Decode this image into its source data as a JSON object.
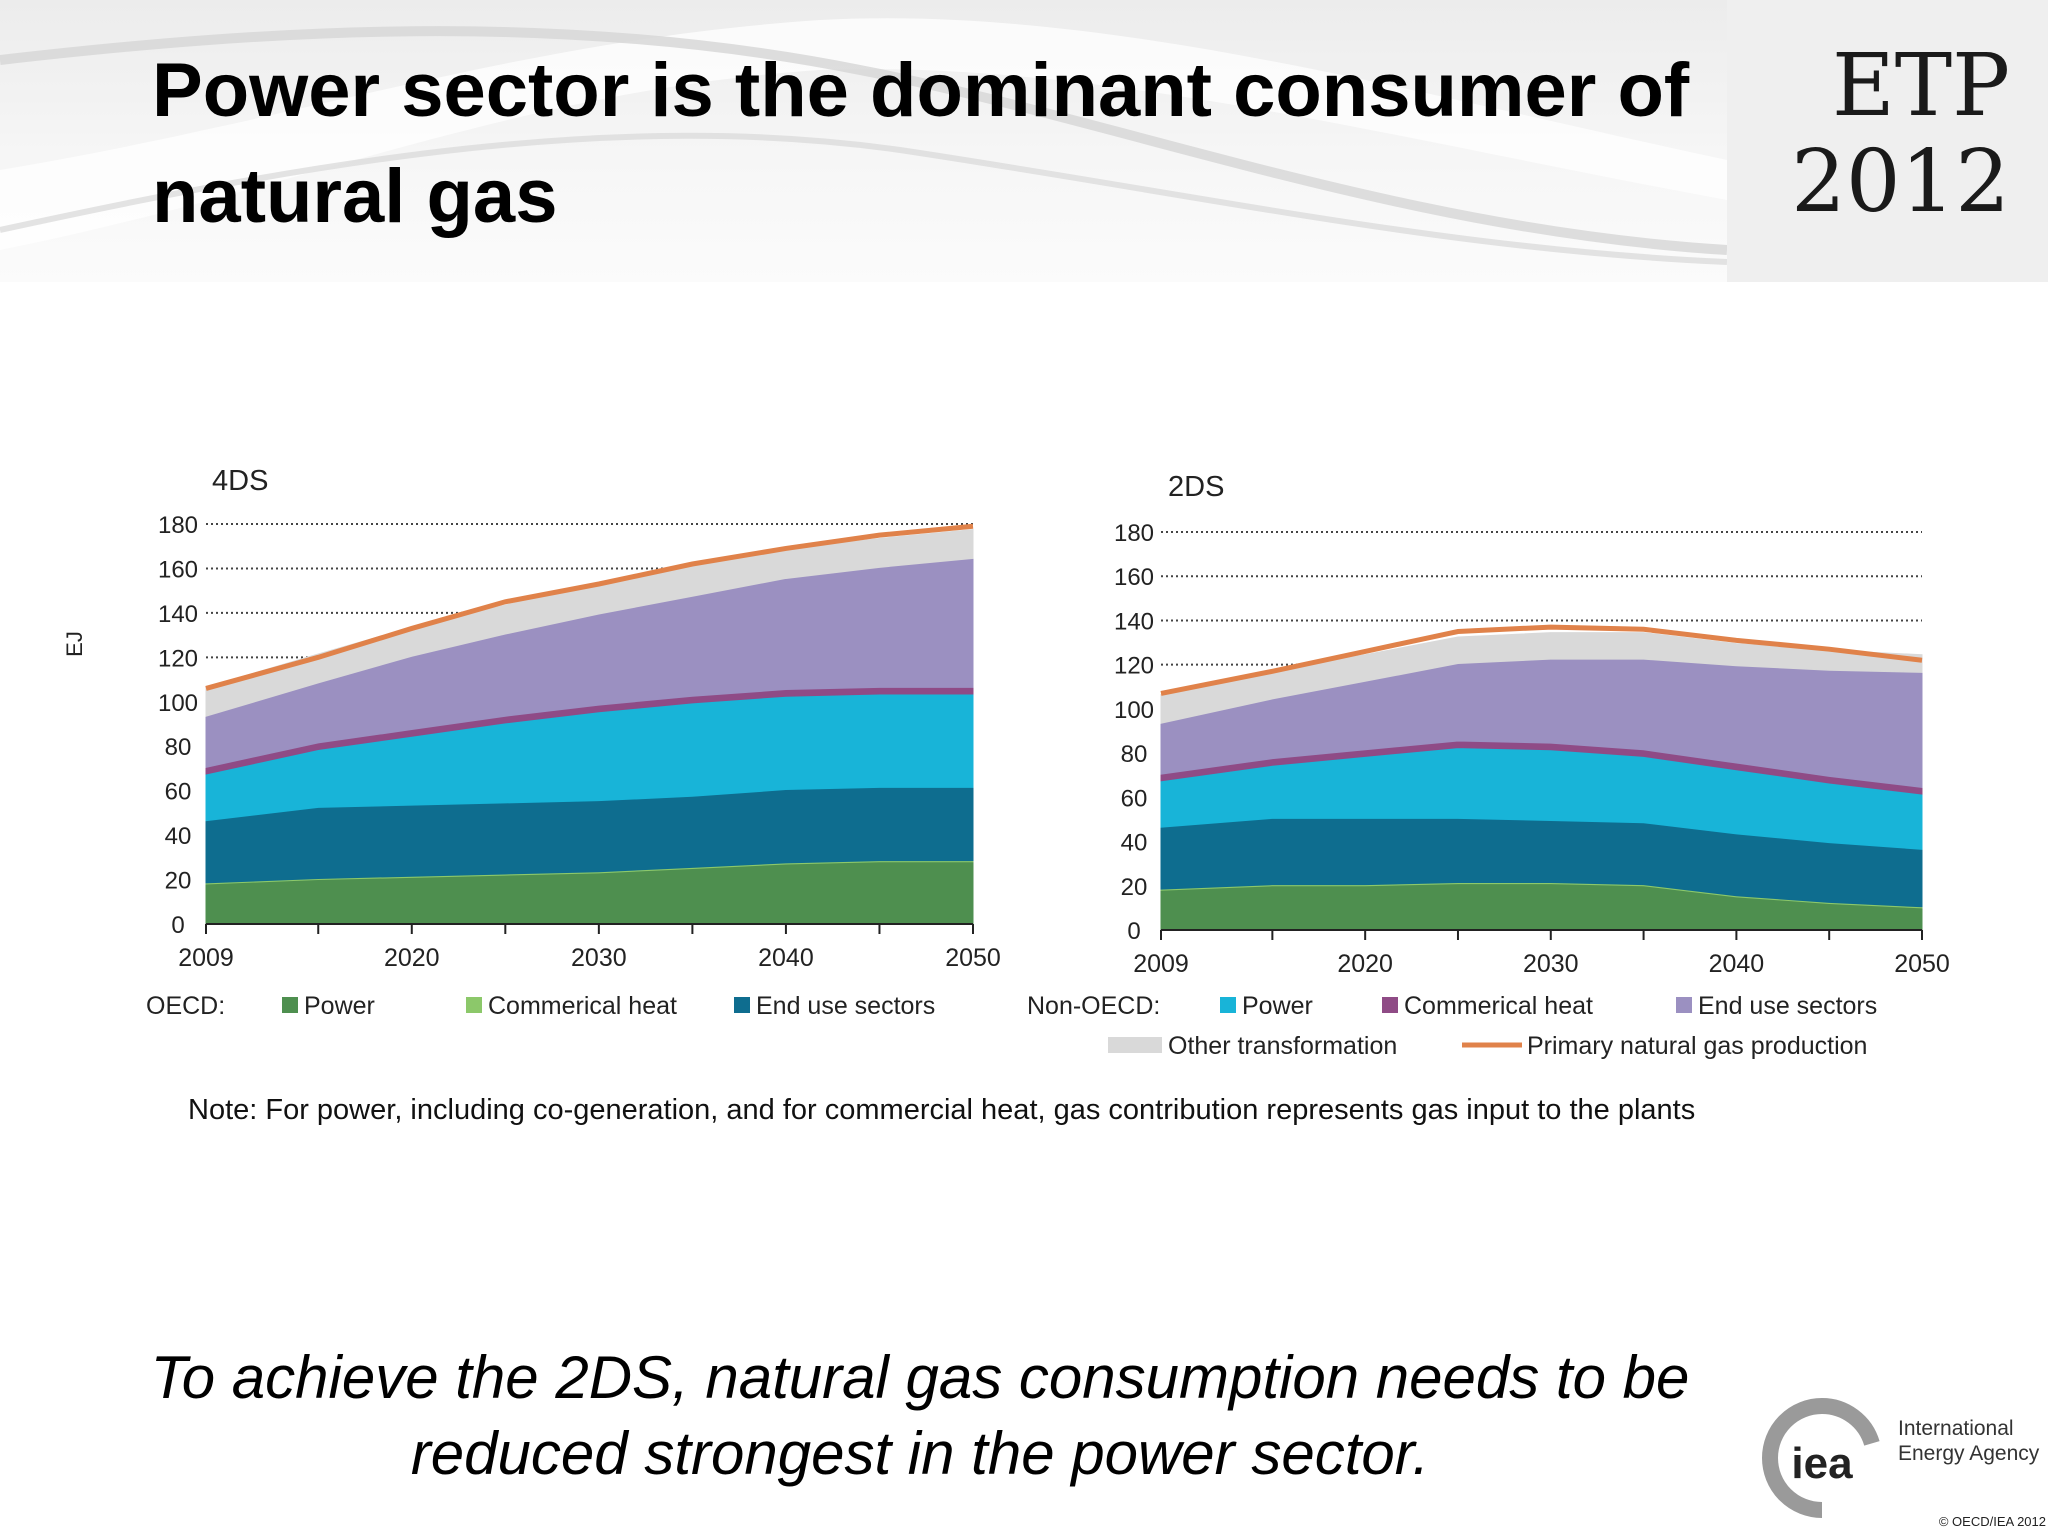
{
  "slide": {
    "title": "Power sector is the dominant consumer of natural gas",
    "logo_line1": "ETP",
    "logo_line2": "2012",
    "note": "Note: For power, including co-generation, and for commercial heat, gas contribution represents gas input to the plants",
    "conclusion": "To achieve the 2DS, natural gas consumption needs to be reduced strongest in the power sector.",
    "org_mark": "iea",
    "org_name_line1": "International",
    "org_name_line2": "Energy Agency",
    "copyright": "© OECD/IEA 2012"
  },
  "legend": {
    "oecd_label": "OECD:",
    "non_oecd_label": "Non-OECD:",
    "items": [
      {
        "name": "Power",
        "color": "#4e8f4f"
      },
      {
        "name": "Commerical heat",
        "color": "#8cc86a"
      },
      {
        "name": "End use sectors",
        "color": "#0e6d8f"
      },
      {
        "name": "Power",
        "color": "#18b4d8"
      },
      {
        "name": "Commerical heat",
        "color": "#8f4b86"
      },
      {
        "name": "End use sectors",
        "color": "#9b90c1"
      },
      {
        "name": "Other transformation",
        "color": "#d9d9d9"
      },
      {
        "name": "Primary natural gas production",
        "color": "#e0824a"
      }
    ]
  },
  "chart_data": [
    {
      "type": "area",
      "title": "4DS",
      "ylabel": "EJ",
      "xlabel": "",
      "x": [
        2009,
        2015,
        2020,
        2025,
        2030,
        2035,
        2040,
        2045,
        2050
      ],
      "xticks": [
        2009,
        2020,
        2030,
        2040,
        2050
      ],
      "ylim": [
        0,
        180
      ],
      "yticks": [
        0,
        20,
        40,
        60,
        80,
        100,
        120,
        140,
        160,
        180
      ],
      "grid": "dotted horizontal",
      "stack_order": [
        "OECD Power",
        "OECD Commerical heat",
        "OECD End use sectors",
        "Non-OECD Power",
        "Non-OECD Commerical heat",
        "Non-OECD End use sectors",
        "Other transformation"
      ],
      "series": [
        {
          "name": "OECD Power",
          "values": [
            18,
            20,
            21,
            22,
            23,
            25,
            27,
            28,
            28
          ]
        },
        {
          "name": "OECD Commerical heat",
          "values": [
            0.5,
            0.5,
            0.5,
            0.5,
            0.5,
            0.5,
            0.5,
            0.5,
            0.5
          ]
        },
        {
          "name": "OECD End use sectors",
          "values": [
            28,
            32,
            32,
            32,
            32,
            32,
            33,
            33,
            33
          ]
        },
        {
          "name": "Non-OECD Power",
          "values": [
            21,
            26,
            31,
            36,
            40,
            42,
            42,
            42,
            42
          ]
        },
        {
          "name": "Non-OECD Commerical heat",
          "values": [
            3,
            3,
            3,
            3,
            3,
            3,
            3,
            3,
            3
          ]
        },
        {
          "name": "Non-OECD End use sectors",
          "values": [
            23,
            27,
            33,
            37,
            41,
            45,
            50,
            54,
            58
          ]
        },
        {
          "name": "Other transformation",
          "values": [
            13,
            13,
            13,
            13,
            14,
            14,
            13,
            13,
            13
          ]
        },
        {
          "name": "Primary natural gas production",
          "type": "line",
          "values": [
            106,
            120,
            133,
            145,
            153,
            162,
            169,
            175,
            179
          ]
        }
      ]
    },
    {
      "type": "area",
      "title": "2DS",
      "ylabel": "",
      "xlabel": "",
      "x": [
        2009,
        2015,
        2020,
        2025,
        2030,
        2035,
        2040,
        2045,
        2050
      ],
      "xticks": [
        2009,
        2020,
        2030,
        2040,
        2050
      ],
      "ylim": [
        0,
        180
      ],
      "yticks": [
        0,
        20,
        40,
        60,
        80,
        100,
        120,
        140,
        160,
        180
      ],
      "grid": "dotted horizontal",
      "stack_order": [
        "OECD Power",
        "OECD Commerical heat",
        "OECD End use sectors",
        "Non-OECD Power",
        "Non-OECD Commerical heat",
        "Non-OECD End use sectors",
        "Other transformation"
      ],
      "series": [
        {
          "name": "OECD Power",
          "values": [
            18,
            20,
            20,
            21,
            21,
            20,
            15,
            12,
            10
          ]
        },
        {
          "name": "OECD Commerical heat",
          "values": [
            0.5,
            0.5,
            0.5,
            0.5,
            0.5,
            0.5,
            0.5,
            0.5,
            0.5
          ]
        },
        {
          "name": "OECD End use sectors",
          "values": [
            28,
            30,
            30,
            29,
            28,
            28,
            28,
            27,
            26
          ]
        },
        {
          "name": "Non-OECD Power",
          "values": [
            21,
            24,
            28,
            32,
            32,
            30,
            29,
            27,
            25
          ]
        },
        {
          "name": "Non-OECD Commerical heat",
          "values": [
            3,
            3,
            3,
            3,
            3,
            3,
            3,
            3,
            3
          ]
        },
        {
          "name": "Non-OECD End use sectors",
          "values": [
            23,
            27,
            31,
            35,
            38,
            41,
            44,
            48,
            52
          ]
        },
        {
          "name": "Other transformation",
          "values": [
            13,
            13,
            12,
            12,
            12,
            12,
            10,
            9,
            8
          ]
        },
        {
          "name": "Primary natural gas production",
          "type": "line",
          "values": [
            107,
            117,
            126,
            135,
            137,
            136,
            131,
            127,
            122
          ]
        }
      ]
    }
  ]
}
